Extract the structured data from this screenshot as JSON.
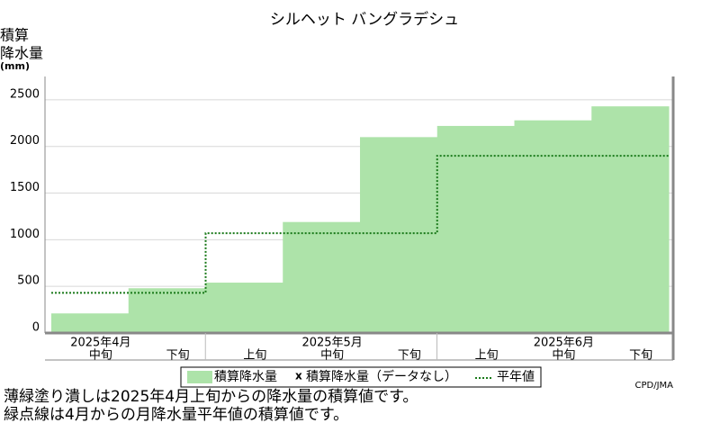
{
  "chart_data": {
    "type": "step-area",
    "title": "シルヘット バングラデシュ",
    "y_label": [
      "積算",
      "降水量",
      "(mm)"
    ],
    "categories": [
      "中旬",
      "下旬",
      "上旬",
      "中旬",
      "下旬",
      "上旬",
      "中旬",
      "下旬"
    ],
    "month_labels": [
      "2025年4月",
      null,
      null,
      "2025年5月",
      null,
      null,
      "2025年6月",
      null
    ],
    "series": [
      {
        "name": "積算降水量",
        "color": "#ade3a9",
        "values": [
          210,
          480,
          540,
          1190,
          2100,
          2220,
          2280,
          2430
        ]
      },
      {
        "name": "平年値",
        "color": "#1a7a1a",
        "values": [
          430,
          430,
          1070,
          1070,
          1070,
          1900,
          1900,
          1900
        ]
      }
    ],
    "no_data_marker": "x",
    "no_data_label": "積算降水量（データなし）",
    "ylim": [
      0,
      2750
    ],
    "yticks": [
      0,
      500,
      1000,
      1500,
      2000,
      2500
    ],
    "grid": true,
    "credit": "CPD/JMA",
    "notes": [
      "薄緑塗り潰しは2025年4月上旬からの降水量の積算値です。",
      "緑点線は4月からの月降水量平年値の積算値です。"
    ]
  }
}
